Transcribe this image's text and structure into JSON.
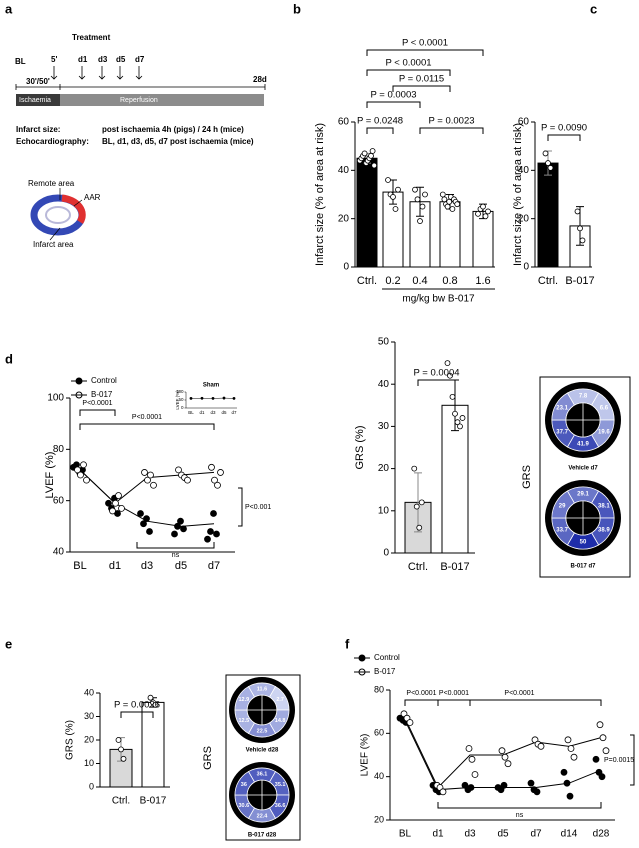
{
  "schematic": {
    "panel": "a",
    "treatment": "Treatment",
    "times": [
      "BL",
      "5'",
      "d1",
      "d3",
      "d5",
      "d7",
      "28d"
    ],
    "duration": "30'/50'",
    "phases": [
      "Ischaemia",
      "Reperfusion"
    ],
    "notes": [
      [
        "Infarct size:",
        "post ischaemia 4h (pigs) / 24 h (mice)"
      ],
      [
        "Echocardiography:",
        "BL, d1, d3, d5, d7 post ischaemia (mice)"
      ]
    ],
    "areas": [
      "Remote area",
      "AAR",
      "Infarct area"
    ]
  },
  "chart_data": [
    {
      "type": "bar",
      "panel": "b",
      "ylabel": "Infarct size (% of area at risk)",
      "xlabel": "mg/kg bw B-017",
      "categories": [
        "Ctrl.",
        "0.2",
        "0.4",
        "0.8",
        "1.6"
      ],
      "values": [
        45,
        31,
        27,
        27,
        23
      ],
      "errors": [
        2,
        5,
        6,
        3,
        3
      ],
      "points": [
        [
          44,
          45,
          46,
          47,
          43,
          44,
          45,
          46,
          48,
          42
        ],
        [
          36,
          30,
          29,
          24,
          32
        ],
        [
          32,
          28,
          19,
          25,
          30
        ],
        [
          30,
          28,
          26,
          25,
          27,
          29,
          24,
          28,
          27,
          26
        ],
        [
          22,
          24,
          25,
          21,
          23
        ]
      ],
      "colors": [
        "#000000",
        "#ffffff",
        "#ffffff",
        "#ffffff",
        "#ffffff"
      ],
      "ylim": [
        0,
        60
      ],
      "yticks": [
        0,
        20,
        40,
        60
      ],
      "annotations": [
        "P < 0.0001",
        "P < 0.0001",
        "P = 0.0115",
        "P = 0.0003",
        "P = 0.0023",
        "P = 0.0248"
      ]
    },
    {
      "type": "bar",
      "panel": "c",
      "ylabel": "Infarct size (% of area at risk)",
      "categories": [
        "Ctrl.",
        "B-017"
      ],
      "values": [
        43,
        17
      ],
      "errors": [
        5,
        8
      ],
      "points": [
        [
          47,
          43,
          41
        ],
        [
          23,
          16,
          11
        ]
      ],
      "colors": [
        "#000000",
        "#ffffff"
      ],
      "ylim": [
        0,
        60
      ],
      "yticks": [
        0,
        20,
        40,
        60
      ],
      "annotations": [
        "P = 0.0090"
      ]
    },
    {
      "type": "line",
      "panel": "d",
      "ylabel": "LVEF (%)",
      "categories": [
        "BL",
        "d1",
        "d3",
        "d5",
        "d7"
      ],
      "series": [
        {
          "name": "Control",
          "marker": "filled",
          "color": "#000000",
          "values": [
            72,
            59,
            52,
            50,
            51
          ],
          "points": [
            [
              73,
              74,
              71,
              72
            ],
            [
              59,
              57,
              61,
              55
            ],
            [
              55,
              51,
              53,
              48
            ],
            [
              47,
              50,
              52,
              49
            ],
            [
              45,
              48,
              55,
              47
            ]
          ]
        },
        {
          "name": "B-017",
          "marker": "open",
          "color": "#000000",
          "values": [
            72,
            59,
            69,
            70,
            71
          ],
          "points": [
            [
              72,
              70,
              74,
              68
            ],
            [
              56,
              59,
              62,
              57
            ],
            [
              71,
              68,
              70,
              66
            ],
            [
              72,
              70,
              69,
              68
            ],
            [
              73,
              68,
              66,
              71
            ]
          ]
        }
      ],
      "ylim": [
        40,
        100
      ],
      "yticks": [
        40,
        60,
        80,
        100
      ],
      "annotations": [
        "P<0.0001",
        "P<0.0001",
        "ns",
        "P<0.001"
      ]
    },
    {
      "type": "line",
      "title": "Sham",
      "ylabel": "LVEF (%)",
      "categories": [
        "BL",
        "d1",
        "d3",
        "d5",
        "d7"
      ],
      "series": [
        {
          "marker": "filled",
          "color": "#000000",
          "values": [
            60,
            61,
            60,
            62,
            60
          ],
          "points": [
            [],
            [],
            [],
            [],
            []
          ]
        }
      ],
      "ylim": [
        0,
        100
      ],
      "yticks": [
        0,
        50,
        100
      ],
      "annotations": []
    },
    {
      "type": "bar",
      "ylabel": "GRS (%)",
      "categories": [
        "Ctrl.",
        "B-017"
      ],
      "values": [
        12,
        35
      ],
      "errors": [
        7,
        6
      ],
      "points": [
        [
          20,
          11,
          6,
          12
        ],
        [
          45,
          42,
          37,
          33,
          31,
          30,
          32
        ]
      ],
      "colors": [
        "#d9d9d9",
        "#ffffff"
      ],
      "ylim": [
        0,
        50
      ],
      "yticks": [
        0,
        10,
        20,
        30,
        40,
        50
      ],
      "annotations": [
        "P = 0.0004"
      ]
    },
    {
      "type": "bar",
      "panel": "e",
      "ylabel": "GRS (%)",
      "categories": [
        "Ctrl.",
        "B-017"
      ],
      "values": [
        16,
        36
      ],
      "errors": [
        5,
        2
      ],
      "points": [
        [
          20,
          16,
          12
        ],
        [
          38,
          36,
          35
        ]
      ],
      "colors": [
        "#d9d9d9",
        "#ffffff"
      ],
      "ylim": [
        0,
        40
      ],
      "yticks": [
        0,
        10,
        20,
        30,
        40
      ],
      "annotations": [
        "P = 0.0026"
      ]
    },
    {
      "type": "line",
      "panel": "f",
      "ylabel": "LVEF (%)",
      "categories": [
        "BL",
        "d1",
        "d3",
        "d5",
        "d7",
        "d14",
        "d28"
      ],
      "series": [
        {
          "name": "Control",
          "marker": "filled",
          "color": "#000000",
          "values": [
            66,
            34,
            35,
            35,
            35,
            37,
            43
          ],
          "points": [
            [
              67,
              66,
              65
            ],
            [
              36,
              34,
              33
            ],
            [
              36,
              34,
              35
            ],
            [
              35,
              34,
              36
            ],
            [
              37,
              34,
              33
            ],
            [
              42,
              37,
              31
            ],
            [
              48,
              42,
              40
            ]
          ]
        },
        {
          "name": "B-017",
          "marker": "open",
          "color": "#000000",
          "values": [
            67,
            35,
            50,
            50,
            56,
            54,
            58
          ],
          "points": [
            [
              69,
              67,
              65
            ],
            [
              36,
              35,
              33
            ],
            [
              53,
              48,
              41
            ],
            [
              52,
              49,
              46
            ],
            [
              57,
              55,
              54
            ],
            [
              57,
              53,
              49
            ],
            [
              64,
              58,
              52
            ]
          ]
        }
      ],
      "ylim": [
        20,
        80
      ],
      "yticks": [
        20,
        40,
        60,
        80
      ],
      "annotations": [
        "P<0.0001",
        "P<0.0001",
        "P<0.0001",
        "ns",
        "P=0.0015"
      ]
    }
  ],
  "bullseye_groups": [
    {
      "label": "GRS",
      "maps": [
        {
          "title": "Vehicle d7",
          "values": [
            7.8,
            6.6,
            19.6,
            41.9,
            37.7,
            23.1
          ]
        },
        {
          "title": "B-017 d7",
          "values": [
            29.1,
            38.1,
            38.9,
            50.0,
            33.7,
            29.0
          ]
        }
      ]
    },
    {
      "label": "GRS",
      "maps": [
        {
          "title": "Vehicle d28",
          "values": [
            11.6,
            2.7,
            14.8,
            22.5,
            12.5,
            12.9
          ]
        },
        {
          "title": "B-017 d28",
          "values": [
            36.1,
            35.1,
            36.6,
            22.4,
            30.6,
            36.0
          ]
        }
      ]
    }
  ]
}
